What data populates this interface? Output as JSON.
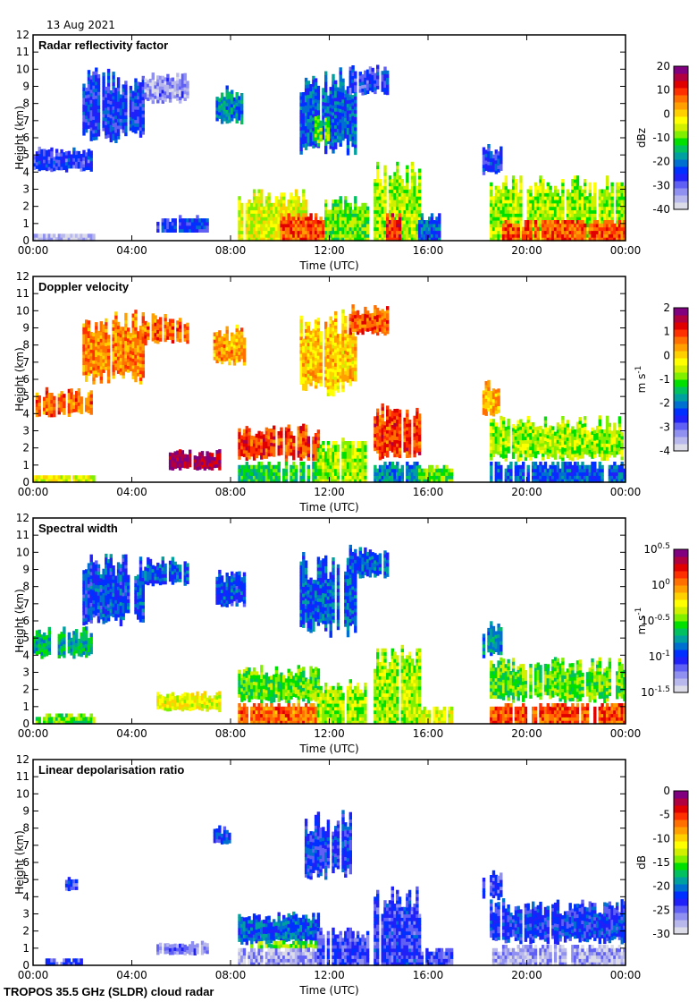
{
  "header": {
    "date": "13 Aug 2021"
  },
  "footer": {
    "instrument": "TROPOS 35.5 GHz (SLDR) cloud radar"
  },
  "colormap": [
    "#dcdce8",
    "#b8b8ec",
    "#9090f0",
    "#6060f4",
    "#2020f8",
    "#0030ff",
    "#0070d0",
    "#00a0a0",
    "#00c060",
    "#00e000",
    "#80f000",
    "#d0f000",
    "#ffff00",
    "#ffd000",
    "#ffa000",
    "#ff7000",
    "#ff3000",
    "#e00000",
    "#b00040",
    "#800080"
  ],
  "chart_data": [
    {
      "type": "heatmap",
      "title": "Radar reflectivity factor",
      "xlabel": "Time (UTC)",
      "ylabel": "Height (km)",
      "xlim": [
        0,
        24
      ],
      "ylim": [
        0,
        12
      ],
      "xticks": [
        "00:00",
        "04:00",
        "08:00",
        "12:00",
        "16:00",
        "20:00",
        "00:00"
      ],
      "yticks": [
        "0",
        "1",
        "2",
        "3",
        "4",
        "5",
        "6",
        "7",
        "8",
        "9",
        "10",
        "11",
        "12"
      ],
      "colorbar": {
        "label": "dBz",
        "range": [
          -40,
          20
        ],
        "ticks": [
          "20",
          "10",
          "0",
          "-10",
          "-20",
          "-30",
          "-40"
        ]
      },
      "regions": [
        {
          "t": [
            0.0,
            2.5
          ],
          "h": [
            0.0,
            0.3
          ],
          "v": 0.05
        },
        {
          "t": [
            0.0,
            2.4
          ],
          "h": [
            4.0,
            5.3
          ],
          "v": 0.22
        },
        {
          "t": [
            2.0,
            4.5
          ],
          "h": [
            5.7,
            10.0
          ],
          "v": 0.25
        },
        {
          "t": [
            4.5,
            6.2
          ],
          "h": [
            8.0,
            9.7
          ],
          "v": 0.12
        },
        {
          "t": [
            5.0,
            7.0
          ],
          "h": [
            0.5,
            1.4
          ],
          "v": 0.25
        },
        {
          "t": [
            7.3,
            8.5
          ],
          "h": [
            6.8,
            9.0
          ],
          "v": 0.35
        },
        {
          "t": [
            8.3,
            11.0
          ],
          "h": [
            0.0,
            3.0
          ],
          "v": 0.6
        },
        {
          "t": [
            10.0,
            11.8
          ],
          "h": [
            0.0,
            1.6
          ],
          "v": 0.8
        },
        {
          "t": [
            10.8,
            13.0
          ],
          "h": [
            5.0,
            10.0
          ],
          "v": 0.3
        },
        {
          "t": [
            11.4,
            11.9
          ],
          "h": [
            5.5,
            7.5
          ],
          "v": 0.5
        },
        {
          "t": [
            12.8,
            14.3
          ],
          "h": [
            8.5,
            10.3
          ],
          "v": 0.22
        },
        {
          "t": [
            11.8,
            13.5
          ],
          "h": [
            0.0,
            2.5
          ],
          "v": 0.5
        },
        {
          "t": [
            13.8,
            15.6
          ],
          "h": [
            0.0,
            4.5
          ],
          "v": 0.55
        },
        {
          "t": [
            14.2,
            14.8
          ],
          "h": [
            0.0,
            1.6
          ],
          "v": 0.85
        },
        {
          "t": [
            15.6,
            16.5
          ],
          "h": [
            0.0,
            1.5
          ],
          "v": 0.3
        },
        {
          "t": [
            18.2,
            19.0
          ],
          "h": [
            3.8,
            5.5
          ],
          "v": 0.25
        },
        {
          "t": [
            18.5,
            24.0
          ],
          "h": [
            0.0,
            3.8
          ],
          "v": 0.55
        },
        {
          "t": [
            19.0,
            24.0
          ],
          "h": [
            0.0,
            1.2
          ],
          "v": 0.8
        }
      ]
    },
    {
      "type": "heatmap",
      "title": "Doppler velocity",
      "xlabel": "Time (UTC)",
      "ylabel": "Height (km)",
      "xlim": [
        0,
        24
      ],
      "ylim": [
        0,
        12
      ],
      "xticks": [
        "00:00",
        "04:00",
        "08:00",
        "12:00",
        "16:00",
        "20:00",
        "00:00"
      ],
      "yticks": [
        "0",
        "1",
        "2",
        "3",
        "4",
        "5",
        "6",
        "7",
        "8",
        "9",
        "10",
        "11",
        "12"
      ],
      "colorbar": {
        "label": "m s-1",
        "range": [
          -4,
          2
        ],
        "ticks": [
          "2",
          "1",
          "0",
          "-1",
          "-2",
          "-3",
          "-4"
        ]
      },
      "regions": [
        {
          "t": [
            0.0,
            2.5
          ],
          "h": [
            0.0,
            0.4
          ],
          "v": 0.6
        },
        {
          "t": [
            0.0,
            2.4
          ],
          "h": [
            3.8,
            5.5
          ],
          "v": 0.78
        },
        {
          "t": [
            2.0,
            4.5
          ],
          "h": [
            5.7,
            10.0
          ],
          "v": 0.75
        },
        {
          "t": [
            4.5,
            6.2
          ],
          "h": [
            8.0,
            9.7
          ],
          "v": 0.78
        },
        {
          "t": [
            5.5,
            7.5
          ],
          "h": [
            0.7,
            1.8
          ],
          "v": 0.95
        },
        {
          "t": [
            7.3,
            8.5
          ],
          "h": [
            6.8,
            9.0
          ],
          "v": 0.72
        },
        {
          "t": [
            8.3,
            11.5
          ],
          "h": [
            1.2,
            3.3
          ],
          "v": 0.82
        },
        {
          "t": [
            8.3,
            11.5
          ],
          "h": [
            0.0,
            1.2
          ],
          "v": 0.45
        },
        {
          "t": [
            10.8,
            13.0
          ],
          "h": [
            5.0,
            10.0
          ],
          "v": 0.68
        },
        {
          "t": [
            11.5,
            13.5
          ],
          "h": [
            0.0,
            2.5
          ],
          "v": 0.55
        },
        {
          "t": [
            12.8,
            14.3
          ],
          "h": [
            8.5,
            10.3
          ],
          "v": 0.8
        },
        {
          "t": [
            13.8,
            15.6
          ],
          "h": [
            1.2,
            4.5
          ],
          "v": 0.82
        },
        {
          "t": [
            13.8,
            15.6
          ],
          "h": [
            0.0,
            1.2
          ],
          "v": 0.35
        },
        {
          "t": [
            15.6,
            17.0
          ],
          "h": [
            0.0,
            1.0
          ],
          "v": 0.5
        },
        {
          "t": [
            18.2,
            19.0
          ],
          "h": [
            3.8,
            6.0
          ],
          "v": 0.7
        },
        {
          "t": [
            18.5,
            24.0
          ],
          "h": [
            1.2,
            3.8
          ],
          "v": 0.55
        },
        {
          "t": [
            18.5,
            24.0
          ],
          "h": [
            0.0,
            1.2
          ],
          "v": 0.3
        }
      ]
    },
    {
      "type": "heatmap",
      "title": "Spectral width",
      "xlabel": "Time (UTC)",
      "ylabel": "Height (km)",
      "xlim": [
        0,
        24
      ],
      "ylim": [
        0,
        12
      ],
      "xticks": [
        "00:00",
        "04:00",
        "08:00",
        "12:00",
        "16:00",
        "20:00",
        "00:00"
      ],
      "yticks": [
        "0",
        "1",
        "2",
        "3",
        "4",
        "5",
        "6",
        "7",
        "8",
        "9",
        "10",
        "11",
        "12"
      ],
      "colorbar": {
        "label": "m s-1",
        "scale": "log10",
        "range": [
          -1.5,
          0.5
        ],
        "ticks": [
          "10^0.5",
          "10^0",
          "10^-0.5",
          "10^-1",
          "10^-1.5"
        ]
      },
      "regions": [
        {
          "t": [
            0.0,
            2.5
          ],
          "h": [
            0.0,
            0.5
          ],
          "v": 0.5
        },
        {
          "t": [
            0.0,
            2.4
          ],
          "h": [
            3.8,
            5.5
          ],
          "v": 0.4
        },
        {
          "t": [
            2.0,
            4.5
          ],
          "h": [
            5.7,
            10.0
          ],
          "v": 0.28
        },
        {
          "t": [
            4.5,
            6.2
          ],
          "h": [
            8.0,
            9.7
          ],
          "v": 0.3
        },
        {
          "t": [
            5.0,
            7.5
          ],
          "h": [
            0.7,
            1.8
          ],
          "v": 0.6
        },
        {
          "t": [
            7.3,
            8.5
          ],
          "h": [
            6.8,
            9.0
          ],
          "v": 0.28
        },
        {
          "t": [
            8.3,
            11.5
          ],
          "h": [
            1.2,
            3.3
          ],
          "v": 0.5
        },
        {
          "t": [
            8.3,
            11.5
          ],
          "h": [
            0.0,
            1.2
          ],
          "v": 0.78
        },
        {
          "t": [
            10.8,
            13.0
          ],
          "h": [
            5.0,
            10.0
          ],
          "v": 0.3
        },
        {
          "t": [
            11.5,
            13.5
          ],
          "h": [
            0.0,
            2.5
          ],
          "v": 0.55
        },
        {
          "t": [
            12.8,
            14.3
          ],
          "h": [
            8.5,
            10.3
          ],
          "v": 0.3
        },
        {
          "t": [
            13.8,
            15.6
          ],
          "h": [
            0.0,
            4.5
          ],
          "v": 0.55
        },
        {
          "t": [
            15.6,
            17.0
          ],
          "h": [
            0.0,
            1.0
          ],
          "v": 0.6
        },
        {
          "t": [
            18.2,
            19.0
          ],
          "h": [
            3.8,
            6.0
          ],
          "v": 0.35
        },
        {
          "t": [
            18.5,
            24.0
          ],
          "h": [
            1.2,
            3.8
          ],
          "v": 0.5
        },
        {
          "t": [
            18.5,
            24.0
          ],
          "h": [
            0.0,
            1.2
          ],
          "v": 0.8
        }
      ]
    },
    {
      "type": "heatmap",
      "title": "Linear depolarisation ratio",
      "xlabel": "Time (UTC)",
      "ylabel": "Height (km)",
      "xlim": [
        0,
        24
      ],
      "ylim": [
        0,
        12
      ],
      "xticks": [
        "00:00",
        "04:00",
        "08:00",
        "12:00",
        "16:00",
        "20:00",
        "00:00"
      ],
      "yticks": [
        "0",
        "1",
        "2",
        "3",
        "4",
        "5",
        "6",
        "7",
        "8",
        "9",
        "10",
        "11",
        "12"
      ],
      "colorbar": {
        "label": "dB",
        "range": [
          -30,
          0
        ],
        "ticks": [
          "0",
          "-5",
          "-10",
          "-15",
          "-20",
          "-25",
          "-30"
        ]
      },
      "regions": [
        {
          "t": [
            0.5,
            2.0
          ],
          "h": [
            0.0,
            0.3
          ],
          "v": 0.2
        },
        {
          "t": [
            1.3,
            1.8
          ],
          "h": [
            4.3,
            5.0
          ],
          "v": 0.22
        },
        {
          "t": [
            5.0,
            7.0
          ],
          "h": [
            0.6,
            1.3
          ],
          "v": 0.15
        },
        {
          "t": [
            7.3,
            8.0
          ],
          "h": [
            7.0,
            8.0
          ],
          "v": 0.25
        },
        {
          "t": [
            8.3,
            11.5
          ],
          "h": [
            1.2,
            3.0
          ],
          "v": 0.3
        },
        {
          "t": [
            8.3,
            11.5
          ],
          "h": [
            0.0,
            1.1
          ],
          "v": 0.1
        },
        {
          "t": [
            8.8,
            11.5
          ],
          "h": [
            1.0,
            1.3
          ],
          "v": 0.5
        },
        {
          "t": [
            11.0,
            12.8
          ],
          "h": [
            5.0,
            9.0
          ],
          "v": 0.25
        },
        {
          "t": [
            11.5,
            13.5
          ],
          "h": [
            0.0,
            2.2
          ],
          "v": 0.2
        },
        {
          "t": [
            13.8,
            15.6
          ],
          "h": [
            0.0,
            4.5
          ],
          "v": 0.22
        },
        {
          "t": [
            15.6,
            17.0
          ],
          "h": [
            0.0,
            1.0
          ],
          "v": 0.2
        },
        {
          "t": [
            18.2,
            19.0
          ],
          "h": [
            3.8,
            5.5
          ],
          "v": 0.2
        },
        {
          "t": [
            18.5,
            24.0
          ],
          "h": [
            1.2,
            3.8
          ],
          "v": 0.25
        },
        {
          "t": [
            18.5,
            24.0
          ],
          "h": [
            0.0,
            1.2
          ],
          "v": 0.1
        }
      ]
    }
  ]
}
